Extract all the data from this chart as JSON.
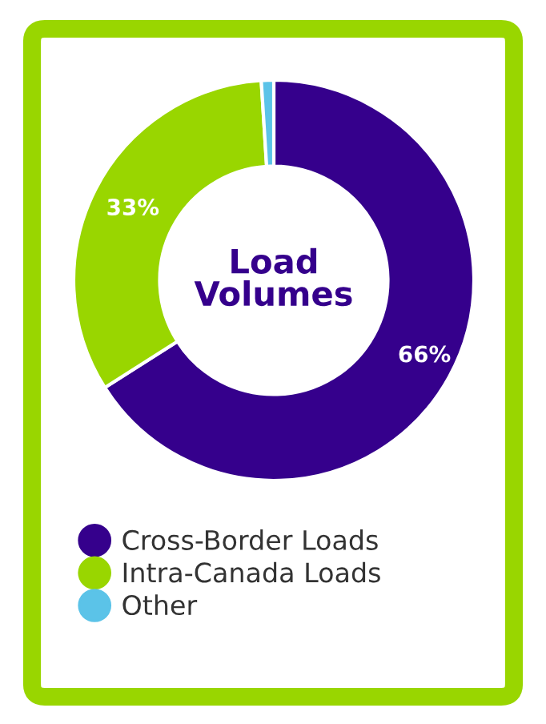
{
  "chart_data": {
    "type": "donut",
    "title": "Load Volumes",
    "categories": [
      "Cross-Border Loads",
      "Intra-Canada Loads",
      "Other"
    ],
    "values": [
      66,
      33,
      1
    ],
    "colors": [
      "#35008c",
      "#99d600",
      "#5bc3e8"
    ],
    "value_labels": [
      "66%",
      "33%",
      null
    ],
    "legend": "bottom"
  }
}
